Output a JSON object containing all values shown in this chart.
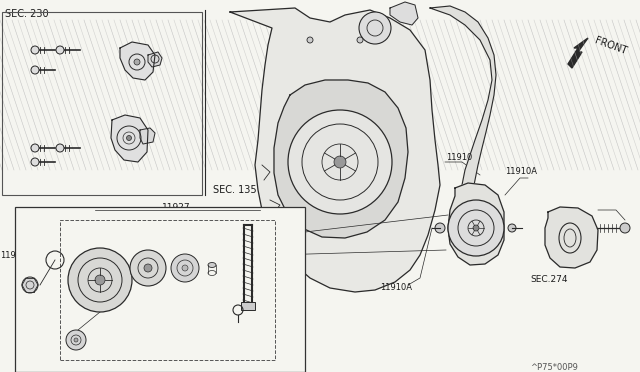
{
  "background_color": "#f5f5f0",
  "line_color": "#2a2a2a",
  "text_color": "#1a1a1a",
  "watermark": "^P75*00P9",
  "front_label": "FRONT",
  "sec230_label": "SEC. 230",
  "sec135_label": "SEC. 135",
  "sec274_label": "SEC.274",
  "hatch_color": "#b0b0b0"
}
